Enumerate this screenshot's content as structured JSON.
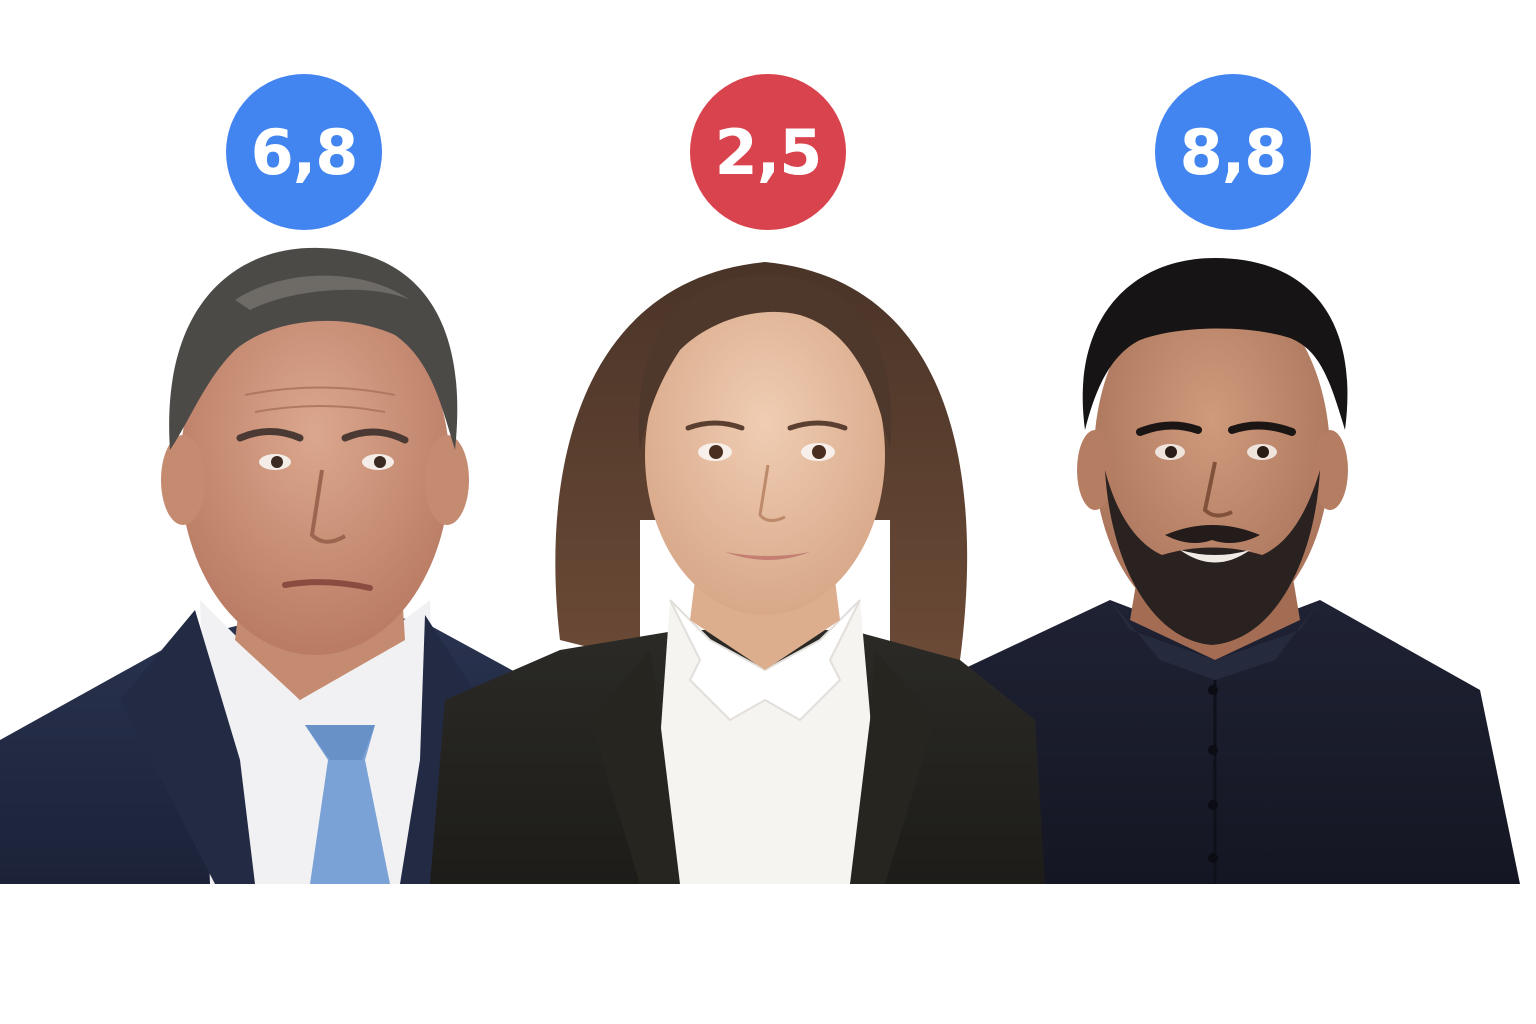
{
  "scores": [
    {
      "label": "6,8",
      "color": "#4285f0"
    },
    {
      "label": "2,5",
      "color": "#d9434d"
    },
    {
      "label": "8,8",
      "color": "#4285f0"
    }
  ],
  "portraits": [
    {
      "subject": "man-in-navy-suit-and-blue-tie"
    },
    {
      "subject": "woman-in-black-blazer-and-white-blouse"
    },
    {
      "subject": "bearded-man-in-black-shirt"
    }
  ]
}
